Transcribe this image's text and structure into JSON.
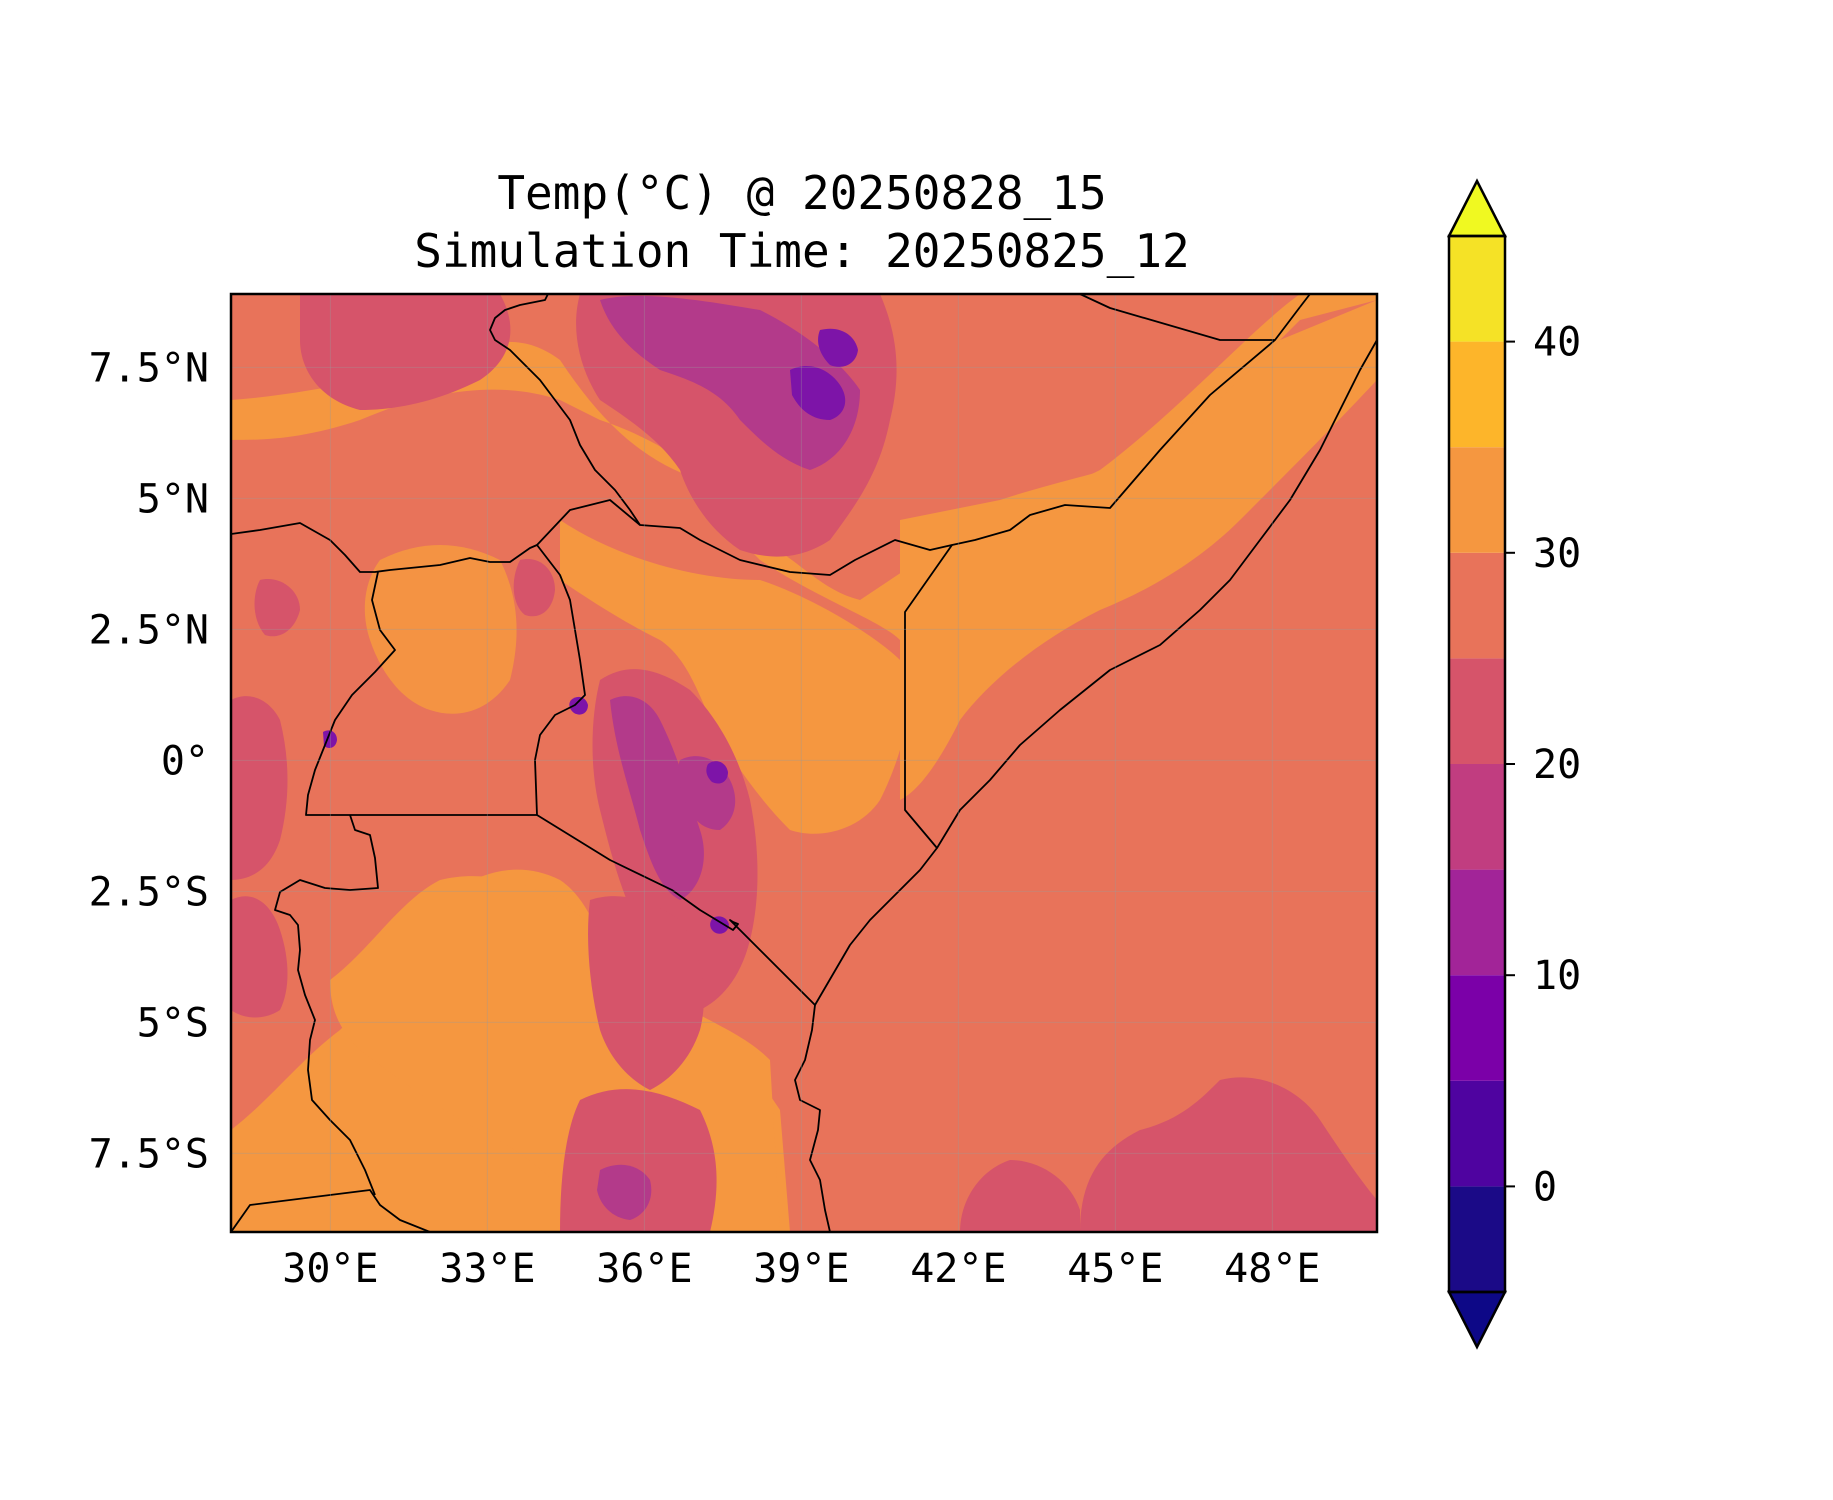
{
  "map": {
    "title_line1": "Temp(°C) @ 20250828_15",
    "title_line2": "Simulation Time: 20250825_12",
    "extent": {
      "lon_min": 28.1,
      "lon_max": 50,
      "lat_min": -9,
      "lat_max": 8.9
    },
    "lon_ticks": [
      {
        "value": 30,
        "label": "30°E"
      },
      {
        "value": 33,
        "label": "33°E"
      },
      {
        "value": 36,
        "label": "36°E"
      },
      {
        "value": 39,
        "label": "39°E"
      },
      {
        "value": 42,
        "label": "42°E"
      },
      {
        "value": 45,
        "label": "45°E"
      },
      {
        "value": 48,
        "label": "48°E"
      }
    ],
    "lat_ticks": [
      {
        "value": 7.5,
        "label": "7.5°N"
      },
      {
        "value": 5,
        "label": "5°N"
      },
      {
        "value": 2.5,
        "label": "2.5°N"
      },
      {
        "value": 0,
        "label": "0°"
      },
      {
        "value": -2.5,
        "label": "2.5°S"
      },
      {
        "value": -5,
        "label": "5°S"
      },
      {
        "value": -7.5,
        "label": "7.5°S"
      }
    ],
    "field": {
      "ocean_color": "#e8735a",
      "low_color": "#f59740",
      "highland_color": "#d6546a",
      "peak_color": "#b33a8a",
      "cold_color": "#7d14a8"
    }
  },
  "colorbar": {
    "levels": [
      -5,
      0,
      5,
      10,
      15,
      20,
      25,
      30,
      35,
      40,
      45
    ],
    "colors": [
      "#1b0a87",
      "#4f03a0",
      "#7b00a8",
      "#a22498",
      "#c13d80",
      "#d6546a",
      "#e8735a",
      "#f59740",
      "#fdb52a",
      "#f5e226"
    ],
    "under_color": "#0d0887",
    "over_color": "#f0f921",
    "ticks": [
      {
        "value": 0,
        "label": "0"
      },
      {
        "value": 10,
        "label": "10"
      },
      {
        "value": 20,
        "label": "20"
      },
      {
        "value": 30,
        "label": "30"
      },
      {
        "value": 40,
        "label": "40"
      }
    ]
  }
}
